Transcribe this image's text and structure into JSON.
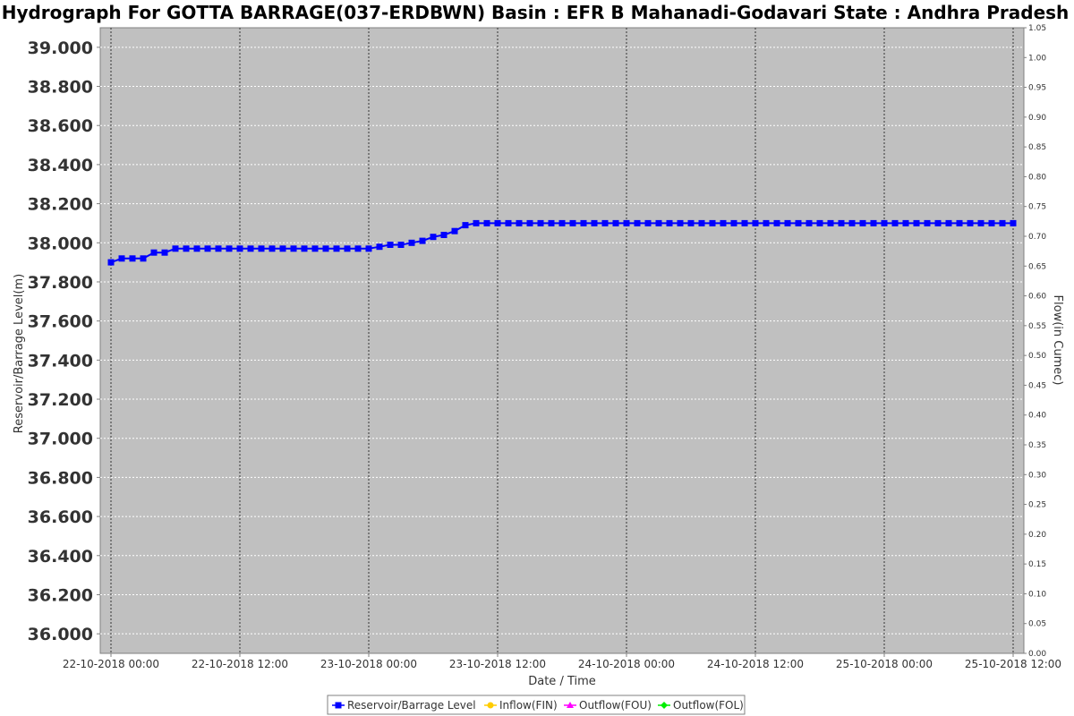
{
  "chart_data": {
    "type": "line",
    "title": "Hydrograph For GOTTA BARRAGE(037-ERDBWN) Basin : EFR B Mahanadi-Godavari State : Andhra Pradesh",
    "xlabel": "Date / Time",
    "ylabel": "Reservoir/Barrage Level(m)",
    "y2label": "Flow(in Cumec)",
    "x_ticks": [
      "22-10-2018 00:00",
      "22-10-2018 12:00",
      "23-10-2018 00:00",
      "23-10-2018 12:00",
      "24-10-2018 00:00",
      "24-10-2018 12:00",
      "25-10-2018 00:00",
      "25-10-2018 12:00"
    ],
    "y_ticks": [
      "36.000",
      "36.200",
      "36.400",
      "36.600",
      "36.800",
      "37.000",
      "37.200",
      "37.400",
      "37.600",
      "37.800",
      "38.000",
      "38.200",
      "38.400",
      "38.600",
      "38.800",
      "39.000"
    ],
    "y2_ticks": [
      "0.00",
      "0.05",
      "0.10",
      "0.15",
      "0.20",
      "0.25",
      "0.30",
      "0.35",
      "0.40",
      "0.45",
      "0.50",
      "0.55",
      "0.60",
      "0.65",
      "0.70",
      "0.75",
      "0.80",
      "0.85",
      "0.90",
      "0.95",
      "1.00",
      "1.05"
    ],
    "x_range_hours": [
      -1,
      85
    ],
    "ylim": [
      35.9,
      39.1
    ],
    "y2lim": [
      0,
      1.05
    ],
    "grid": true,
    "legend_position": "bottom",
    "series": [
      {
        "name": "Reservoir/Barrage Level",
        "color": "#0000ff",
        "marker": "square",
        "x_hours": [
          0,
          1,
          2,
          3,
          4,
          5,
          6,
          7,
          8,
          9,
          10,
          11,
          12,
          13,
          14,
          15,
          16,
          17,
          18,
          19,
          20,
          21,
          22,
          23,
          24,
          25,
          26,
          27,
          28,
          29,
          30,
          31,
          32,
          33,
          34,
          35,
          36,
          37,
          38,
          39,
          40,
          41,
          42,
          43,
          44,
          45,
          46,
          47,
          48,
          49,
          50,
          51,
          52,
          53,
          54,
          55,
          56,
          57,
          58,
          59,
          60,
          61,
          62,
          63,
          64,
          65,
          66,
          67,
          68,
          69,
          70,
          71,
          72,
          73,
          74,
          75,
          76,
          77,
          78,
          79,
          80,
          81,
          82,
          83,
          84
        ],
        "values": [
          37.9,
          37.92,
          37.92,
          37.92,
          37.95,
          37.95,
          37.97,
          37.97,
          37.97,
          37.97,
          37.97,
          37.97,
          37.97,
          37.97,
          37.97,
          37.97,
          37.97,
          37.97,
          37.97,
          37.97,
          37.97,
          37.97,
          37.97,
          37.97,
          37.97,
          37.98,
          37.99,
          37.99,
          38.0,
          38.01,
          38.03,
          38.04,
          38.06,
          38.09,
          38.1,
          38.1,
          38.1,
          38.1,
          38.1,
          38.1,
          38.1,
          38.1,
          38.1,
          38.1,
          38.1,
          38.1,
          38.1,
          38.1,
          38.1,
          38.1,
          38.1,
          38.1,
          38.1,
          38.1,
          38.1,
          38.1,
          38.1,
          38.1,
          38.1,
          38.1,
          38.1,
          38.1,
          38.1,
          38.1,
          38.1,
          38.1,
          38.1,
          38.1,
          38.1,
          38.1,
          38.1,
          38.1,
          38.1,
          38.1,
          38.1,
          38.1,
          38.1,
          38.1,
          38.1,
          38.1,
          38.1,
          38.1,
          38.1,
          38.1,
          38.1
        ]
      },
      {
        "name": "Inflow(FIN)",
        "color": "#ffcc00",
        "marker": "circle",
        "values": []
      },
      {
        "name": "Outflow(FOU)",
        "color": "#ff00ff",
        "marker": "triangle",
        "values": []
      },
      {
        "name": "Outflow(FOL)",
        "color": "#00ee00",
        "marker": "diamond",
        "values": []
      }
    ]
  }
}
